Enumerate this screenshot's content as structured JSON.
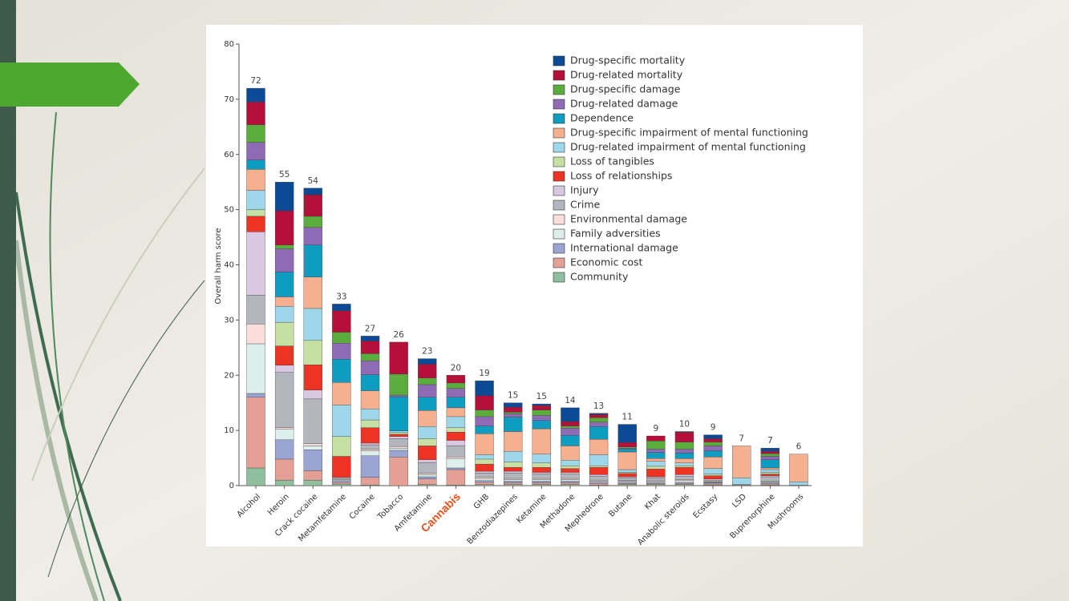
{
  "chart_data": {
    "type": "stacked_bar",
    "y_label": "Overall harm score",
    "categories": [
      "Alcohol",
      "Heroin",
      "Crack cocaine",
      "Metamfetamine",
      "Cocaine",
      "Tobacco",
      "Amfetamine",
      "Cannabis",
      "GHB",
      "Benzodiazepines",
      "Ketamine",
      "Methadone",
      "Mephedrone",
      "Butane",
      "Khat",
      "Anabolic steroids",
      "Ecstasy",
      "LSD",
      "Buprenorphine",
      "Mushrooms"
    ],
    "totals": [
      72,
      55,
      54,
      33,
      27,
      26,
      23,
      20,
      19,
      15,
      15,
      14,
      13,
      11,
      9,
      10,
      9,
      7,
      7,
      6
    ],
    "highlight": {
      "index": 7,
      "color": "#e8501c"
    },
    "ylim": [
      0,
      80
    ],
    "yticks": [
      0,
      10,
      20,
      30,
      40,
      50,
      60,
      70,
      80
    ],
    "series": [
      {
        "name": "Drug-specific mortality",
        "color": "#0b4a94",
        "values": [
          2.5,
          5.2,
          1.2,
          1.2,
          0.9,
          0,
          1.0,
          0,
          2.7,
          0.8,
          0.3,
          2.5,
          0.2,
          3.3,
          0,
          0.1,
          0.7,
          0,
          0.6,
          0
        ]
      },
      {
        "name": "Drug-related mortality",
        "color": "#b5103a",
        "values": [
          4.1,
          6.2,
          3.9,
          3.9,
          2.3,
          5.8,
          2.5,
          1.4,
          2.6,
          0.9,
          0.8,
          0.8,
          0.6,
          0.8,
          0.9,
          1.8,
          0.6,
          0,
          0.4,
          0
        ]
      },
      {
        "name": "Drug-specific damage",
        "color": "#5aac3c",
        "values": [
          3.2,
          0.7,
          2.0,
          2.0,
          1.3,
          3.8,
          1.2,
          1.0,
          1.2,
          0.3,
          1.0,
          0.4,
          0.8,
          0.2,
          1.5,
          1.3,
          0.7,
          0,
          0.5,
          0
        ]
      },
      {
        "name": "Drug-related damage",
        "color": "#8f6bb5",
        "values": [
          3.2,
          4.2,
          3.2,
          2.9,
          2.5,
          0.3,
          2.3,
          1.6,
          1.7,
          0.6,
          0.9,
          1.3,
          0.8,
          0.2,
          0.6,
          0.7,
          0.9,
          0,
          0.6,
          0
        ]
      },
      {
        "name": "Dependence",
        "color": "#0e9cc0",
        "values": [
          1.7,
          4.5,
          5.8,
          4.2,
          2.9,
          6.2,
          2.4,
          1.9,
          1.4,
          2.6,
          1.5,
          1.9,
          2.3,
          0.5,
          1.1,
          1.0,
          1.1,
          0,
          1.5,
          0
        ]
      },
      {
        "name": "Drug-specific impairment of mental functioning",
        "color": "#f7b08f",
        "values": [
          3.8,
          1.7,
          5.7,
          4.1,
          3.3,
          0,
          2.9,
          1.6,
          3.8,
          3.6,
          4.6,
          2.6,
          2.8,
          3.2,
          0.5,
          0.8,
          2.1,
          5.8,
          0.3,
          5.0
        ]
      },
      {
        "name": "Drug-related impairment of mental functioning",
        "color": "#9fd7ea",
        "values": [
          3.5,
          2.9,
          5.8,
          5.7,
          2.0,
          0.3,
          2.2,
          2.0,
          0.8,
          1.9,
          1.6,
          1.0,
          2.0,
          0.5,
          0.9,
          0.5,
          1.0,
          1.2,
          0.5,
          0.6
        ]
      },
      {
        "name": "Loss of tangibles",
        "color": "#c6e0a4",
        "values": [
          1.2,
          4.3,
          4.4,
          3.6,
          1.4,
          0.3,
          1.3,
          0.8,
          0.9,
          1.0,
          0.8,
          0.5,
          0.3,
          0.2,
          0.5,
          0.3,
          0.3,
          0,
          0.3,
          0
        ]
      },
      {
        "name": "Loss of relationships",
        "color": "#ec3324",
        "values": [
          2.8,
          3.5,
          4.6,
          3.8,
          2.8,
          0.4,
          2.5,
          1.5,
          1.3,
          0.7,
          0.9,
          0.7,
          1.3,
          0.6,
          1.4,
          1.3,
          0.6,
          0,
          0.3,
          0
        ]
      },
      {
        "name": "Injury",
        "color": "#d8c8e2",
        "values": [
          11.5,
          1.3,
          1.6,
          0,
          0.3,
          0.4,
          0.5,
          1.0,
          0.3,
          0.3,
          0.3,
          0.3,
          0.3,
          0.2,
          0.2,
          0.3,
          0.2,
          0,
          0.2,
          0
        ]
      },
      {
        "name": "Crime",
        "color": "#b3b7bd",
        "values": [
          5.2,
          10.0,
          8.1,
          0.3,
          0.8,
          1.4,
          2.0,
          2.0,
          0.8,
          1.0,
          0.8,
          0.8,
          0.7,
          0.5,
          0.4,
          0.6,
          0.3,
          0.1,
          0.8,
          0.1
        ]
      },
      {
        "name": "Environmental damage",
        "color": "#f9dedb",
        "values": [
          3.6,
          0.3,
          0.4,
          0.1,
          0.3,
          0.3,
          0.2,
          0.3,
          0.3,
          0.2,
          0.2,
          0.2,
          0.2,
          0.1,
          0.2,
          0.2,
          0.1,
          0,
          0.1,
          0
        ]
      },
      {
        "name": "Family adversities",
        "color": "#dcefea",
        "values": [
          9.0,
          1.9,
          0.7,
          0.2,
          0.9,
          0.4,
          0.4,
          1.7,
          0.3,
          0.3,
          0.3,
          0.3,
          0.2,
          0.2,
          0.2,
          0.3,
          0.1,
          0,
          0.2,
          0
        ]
      },
      {
        "name": "International damage",
        "color": "#9aa5d3",
        "values": [
          0.7,
          3.5,
          3.8,
          0.3,
          3.9,
          1.2,
          0.4,
          0.3,
          0.3,
          0.3,
          0.3,
          0.3,
          0.2,
          0.2,
          0.2,
          0.2,
          0.2,
          0,
          0.2,
          0
        ]
      },
      {
        "name": "Economic cost",
        "color": "#e5a095",
        "values": [
          12.8,
          3.8,
          1.7,
          0.3,
          1.4,
          5.2,
          1.0,
          2.8,
          0.4,
          0.3,
          0.3,
          0.3,
          0.3,
          0.2,
          0.2,
          0.2,
          0.2,
          0.1,
          0.2,
          0
        ]
      },
      {
        "name": "Community",
        "color": "#8fbf9f",
        "values": [
          3.2,
          1.0,
          1.0,
          0.3,
          0.1,
          0,
          0.2,
          0.1,
          0.2,
          0.2,
          0.2,
          0.2,
          0.1,
          0.2,
          0.2,
          0.2,
          0.1,
          0,
          0.1,
          0
        ]
      }
    ]
  }
}
